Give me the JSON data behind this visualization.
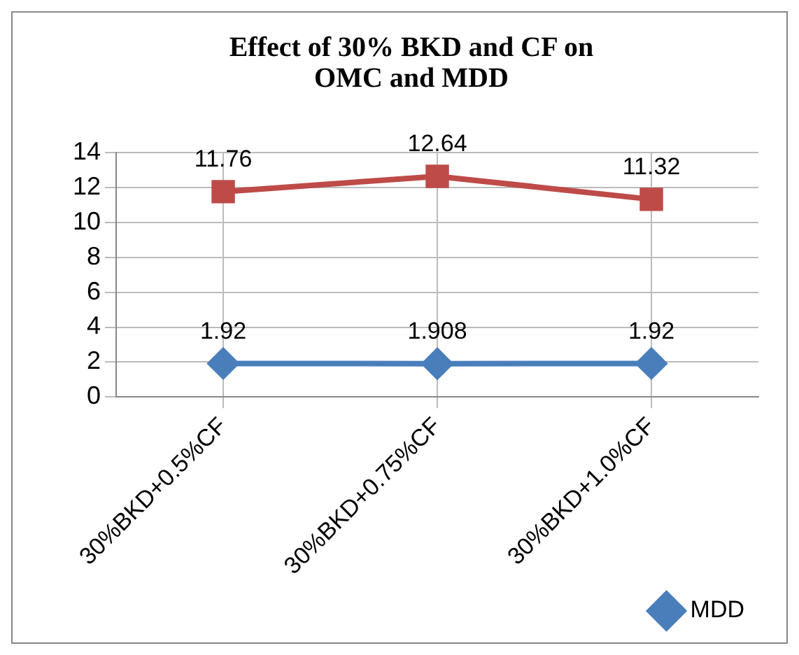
{
  "chart_data": {
    "type": "line",
    "title": "Effect of 30% BKD and CF on OMC and MDD",
    "categories": [
      "30%BKD+0.5%CF",
      "30%BKD+0.75%CF",
      "30%BKD+1.0%CF"
    ],
    "series": [
      {
        "name": "MDD",
        "color": "#4a7ebb",
        "values": [
          1.92,
          1.908,
          1.92
        ],
        "marker": "diamond"
      },
      {
        "color": "#be4b48",
        "values": [
          11.76,
          12.64,
          11.32
        ],
        "marker": "square"
      }
    ],
    "ylim": [
      0,
      14
    ],
    "yticks": [
      0,
      2,
      4,
      6,
      8,
      10,
      12,
      14
    ],
    "grid": true,
    "legend": "bottom right",
    "data_labels": true,
    "line_style": "solid"
  }
}
